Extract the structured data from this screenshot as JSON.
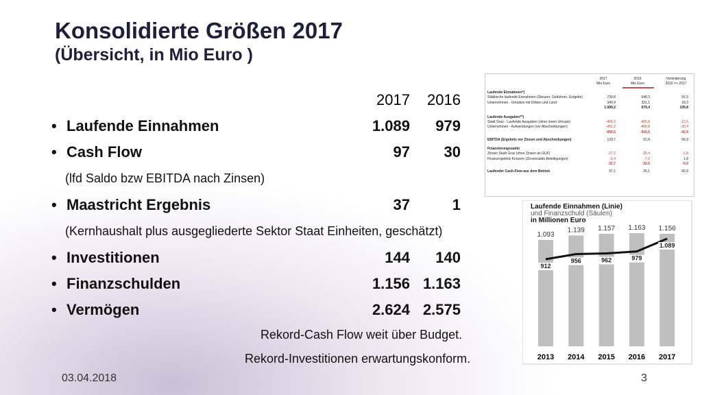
{
  "header": {
    "title": "Konsolidierte Größen 2017",
    "subtitle": "(Übersicht, in Mio Euro )"
  },
  "list": {
    "columns": [
      "2017",
      "2016"
    ],
    "items": [
      {
        "label": "Laufende Einnahmen",
        "v2017": "1.089",
        "v2016": "979"
      },
      {
        "label": "Cash Flow",
        "v2017": "97",
        "v2016": "30",
        "note": "(lfd Saldo bzw EBITDA nach Zinsen)"
      },
      {
        "label": "Maastricht Ergebnis",
        "v2017": "37",
        "v2016": "1",
        "note": "(Kernhaushalt plus ausgegliederte Sektor Staat Einheiten, geschätzt)"
      },
      {
        "label": "Investitionen",
        "v2017": "144",
        "v2016": "140"
      },
      {
        "label": "Finanzschulden",
        "v2017": "1.156",
        "v2016": "1.163"
      },
      {
        "label": "Vermögen",
        "v2017": "2.624",
        "v2016": "2.575"
      }
    ]
  },
  "closing": [
    "Rekord-Cash Flow weit über Budget.",
    "Rekord-Investitionen erwartungskonform."
  ],
  "table": {
    "head": [
      [
        "2017",
        "2016",
        "Veränderung"
      ],
      [
        "Mio Euro",
        "Mio Euro",
        "2016 => 2017"
      ]
    ],
    "rows": [
      [
        "Laufende Einnahmen*)"
      ],
      [
        "Städtische laufende Einnahmen (Steuern, Gebühren, Entgelte)",
        "739,8",
        "648,3",
        "91,5"
      ],
      [
        "Unternehmen - Umsätze mit Dritten und Land",
        "349,4",
        "331,1",
        "18,3"
      ],
      [
        "",
        "1.089,2",
        "979,4",
        "109,8"
      ],
      [
        "Laufende Ausgaben**)"
      ],
      [
        "Stadt Graz - Laufende Ausgaben (ohne Innen-Umsatz)",
        "-468,3",
        "-455,8",
        "-12,5"
      ],
      [
        "Unternehmen - Aufwendungen (vor Abschreibungen)",
        "-491,2",
        "-460,8",
        "-30,4"
      ],
      [
        "",
        "-959,5",
        "-916,6",
        "-42,9"
      ],
      [
        "EBITDA (Ergebnis vor Zinsen und Abschreibungen)",
        "129,7",
        "62,8",
        "66,9"
      ],
      [
        "Finanzierungssaldo"
      ],
      [
        "Zinsen Stadt Graz (ohne Zinsen an GUF)",
        "-27,2",
        "-25,4",
        "-1,8"
      ],
      [
        "Finanzergebnis Konzern (Zinsensaldo,Beteiligungen)",
        "-5,4",
        "-7,2",
        "1,8"
      ],
      [
        "",
        "-32,7",
        "-32,6",
        "-0,0"
      ],
      [
        "Laufender Cash-Flow aus dem Betrieb",
        "97,1",
        "30,1",
        "66,9"
      ]
    ]
  },
  "chart": {
    "type": "bar-line",
    "title": [
      "Laufende Einnahmen (Linie)",
      "und Finanzschuld (Säulen)",
      "in Millionen Euro"
    ],
    "categories": [
      "2013",
      "2014",
      "2015",
      "2016",
      "2017"
    ],
    "series": [
      {
        "name": "Finanzschuld",
        "type": "bar",
        "color": "#bfbfbf",
        "values": [
          1093,
          1139,
          1157,
          1163,
          1156
        ],
        "value_labels": [
          "1.093",
          "1.139",
          "1.157",
          "1.163",
          "1.156"
        ]
      },
      {
        "name": "Laufende Einnahmen",
        "type": "line",
        "color": "#111111",
        "values": [
          912,
          956,
          962,
          979,
          1089
        ],
        "value_labels": [
          "912",
          "956",
          "962",
          "979",
          "1.089"
        ]
      }
    ]
  },
  "footer": {
    "date": "03.04.2018",
    "page": "3"
  }
}
